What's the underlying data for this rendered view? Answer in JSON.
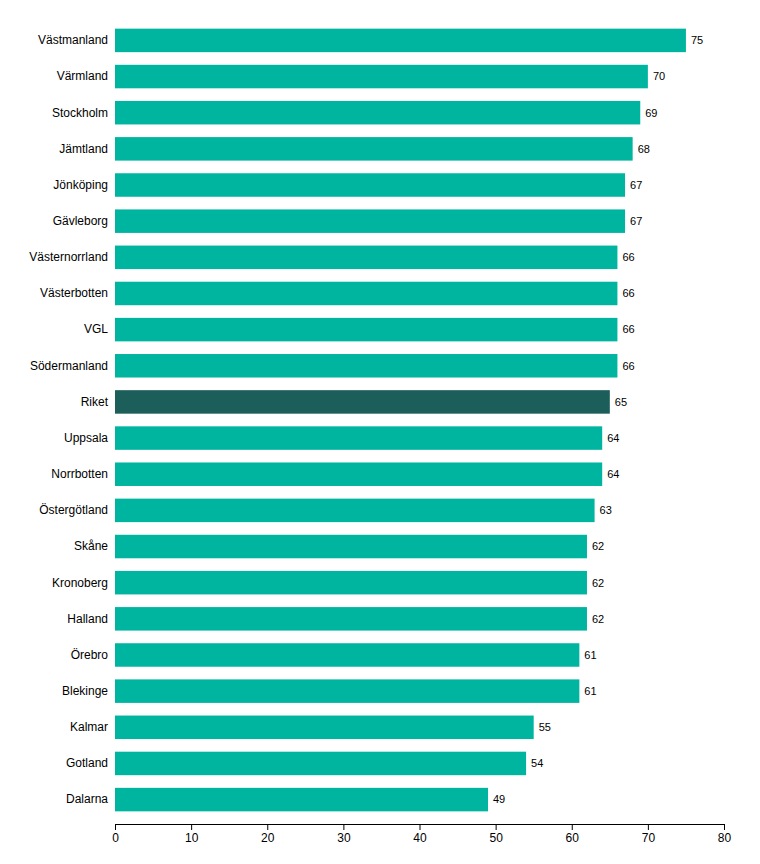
{
  "chart_data": {
    "type": "bar",
    "orientation": "horizontal",
    "categories": [
      "Dalarna",
      "Gotland",
      "Kalmar",
      "Blekinge",
      "Örebro",
      "Halland",
      "Kronoberg",
      "Skåne",
      "Östergötland",
      "Norrbotten",
      "Uppsala",
      "Riket",
      "Södermanland",
      "VGL",
      "Västerbotten",
      "Västernorrland",
      "Gävleborg",
      "Jönköping",
      "Jämtland",
      "Stockholm",
      "Värmland",
      "Västmanland"
    ],
    "values": [
      49,
      54,
      55,
      61,
      61,
      62,
      62,
      62,
      63,
      64,
      64,
      65,
      66,
      66,
      66,
      66,
      67,
      67,
      68,
      69,
      70,
      75
    ],
    "colors": [
      "#00B5A0",
      "#00B5A0",
      "#00B5A0",
      "#00B5A0",
      "#00B5A0",
      "#00B5A0",
      "#00B5A0",
      "#00B5A0",
      "#00B5A0",
      "#00B5A0",
      "#00B5A0",
      "#1B5E5A",
      "#00B5A0",
      "#00B5A0",
      "#00B5A0",
      "#00B5A0",
      "#00B5A0",
      "#00B5A0",
      "#00B5A0",
      "#00B5A0",
      "#00B5A0",
      "#00B5A0"
    ],
    "xlim": [
      0,
      80
    ],
    "xticks": [
      0,
      10,
      20,
      30,
      40,
      50,
      60,
      70,
      80
    ],
    "grid": false,
    "data_labels": true
  }
}
